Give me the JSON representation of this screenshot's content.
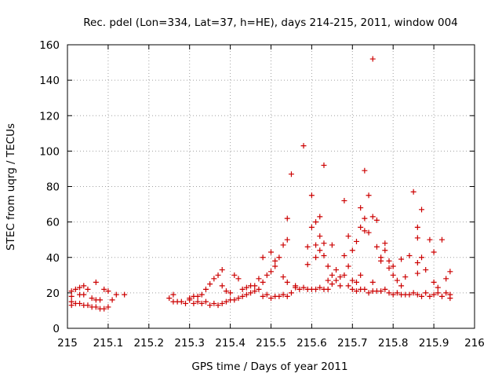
{
  "chart_data": {
    "type": "scatter",
    "title": "Rec. pdel (Lon=334, Lat=37, h=HE), days 214-215, 2011, window 004",
    "xlabel": "GPS time / Days of year 2011",
    "ylabel": "STEC from uqrg / TECUs",
    "xlim": [
      215,
      216
    ],
    "ylim": [
      0,
      160
    ],
    "x_ticks": [
      "215",
      "215.1",
      "215.2",
      "215.3",
      "215.4",
      "215.5",
      "215.6",
      "215.7",
      "215.8",
      "215.9",
      "216"
    ],
    "y_ticks": [
      "0",
      "20",
      "40",
      "60",
      "80",
      "100",
      "120",
      "140",
      "160"
    ],
    "grid": true,
    "marker": "+",
    "color": "#cc0000",
    "points": [
      [
        215.01,
        13
      ],
      [
        215.01,
        15
      ],
      [
        215.01,
        18
      ],
      [
        215.01,
        21
      ],
      [
        215.02,
        14
      ],
      [
        215.02,
        22
      ],
      [
        215.03,
        14
      ],
      [
        215.03,
        19
      ],
      [
        215.03,
        23
      ],
      [
        215.04,
        13
      ],
      [
        215.04,
        19
      ],
      [
        215.04,
        24
      ],
      [
        215.05,
        13
      ],
      [
        215.05,
        22
      ],
      [
        215.06,
        12
      ],
      [
        215.06,
        17
      ],
      [
        215.07,
        12
      ],
      [
        215.07,
        16
      ],
      [
        215.07,
        26
      ],
      [
        215.08,
        11
      ],
      [
        215.08,
        16
      ],
      [
        215.09,
        11
      ],
      [
        215.09,
        22
      ],
      [
        215.1,
        12
      ],
      [
        215.1,
        21
      ],
      [
        215.11,
        16
      ],
      [
        215.12,
        19
      ],
      [
        215.14,
        19
      ],
      [
        215.25,
        17
      ],
      [
        215.26,
        15
      ],
      [
        215.26,
        19
      ],
      [
        215.27,
        15
      ],
      [
        215.28,
        15
      ],
      [
        215.29,
        14
      ],
      [
        215.3,
        16
      ],
      [
        215.3,
        17
      ],
      [
        215.31,
        14
      ],
      [
        215.31,
        18
      ],
      [
        215.32,
        15
      ],
      [
        215.32,
        18
      ],
      [
        215.33,
        14
      ],
      [
        215.33,
        19
      ],
      [
        215.34,
        15
      ],
      [
        215.34,
        22
      ],
      [
        215.35,
        13
      ],
      [
        215.35,
        25
      ],
      [
        215.36,
        14
      ],
      [
        215.36,
        28
      ],
      [
        215.37,
        13
      ],
      [
        215.37,
        30
      ],
      [
        215.38,
        14
      ],
      [
        215.38,
        24
      ],
      [
        215.38,
        33
      ],
      [
        215.39,
        15
      ],
      [
        215.39,
        21
      ],
      [
        215.4,
        16
      ],
      [
        215.4,
        20
      ],
      [
        215.41,
        16
      ],
      [
        215.41,
        30
      ],
      [
        215.42,
        17
      ],
      [
        215.42,
        28
      ],
      [
        215.43,
        18
      ],
      [
        215.43,
        22
      ],
      [
        215.44,
        19
      ],
      [
        215.44,
        23
      ],
      [
        215.45,
        20
      ],
      [
        215.45,
        24
      ],
      [
        215.46,
        21
      ],
      [
        215.46,
        24
      ],
      [
        215.47,
        22
      ],
      [
        215.47,
        28
      ],
      [
        215.48,
        18
      ],
      [
        215.48,
        26
      ],
      [
        215.48,
        40
      ],
      [
        215.49,
        19
      ],
      [
        215.49,
        30
      ],
      [
        215.5,
        17
      ],
      [
        215.5,
        32
      ],
      [
        215.5,
        43
      ],
      [
        215.51,
        18
      ],
      [
        215.51,
        35
      ],
      [
        215.51,
        38
      ],
      [
        215.52,
        18
      ],
      [
        215.52,
        40
      ],
      [
        215.53,
        19
      ],
      [
        215.53,
        29
      ],
      [
        215.53,
        47
      ],
      [
        215.54,
        18
      ],
      [
        215.54,
        26
      ],
      [
        215.54,
        50
      ],
      [
        215.54,
        62
      ],
      [
        215.55,
        20
      ],
      [
        215.55,
        87
      ],
      [
        215.56,
        23
      ],
      [
        215.56,
        24
      ],
      [
        215.57,
        22
      ],
      [
        215.58,
        23
      ],
      [
        215.58,
        103
      ],
      [
        215.59,
        22
      ],
      [
        215.59,
        36
      ],
      [
        215.59,
        46
      ],
      [
        215.6,
        22
      ],
      [
        215.6,
        75
      ],
      [
        215.6,
        57
      ],
      [
        215.61,
        22
      ],
      [
        215.61,
        40
      ],
      [
        215.61,
        47
      ],
      [
        215.61,
        60
      ],
      [
        215.62,
        23
      ],
      [
        215.62,
        44
      ],
      [
        215.62,
        52
      ],
      [
        215.62,
        63
      ],
      [
        215.63,
        22
      ],
      [
        215.63,
        41
      ],
      [
        215.63,
        48
      ],
      [
        215.63,
        92
      ],
      [
        215.64,
        22
      ],
      [
        215.64,
        35
      ],
      [
        215.64,
        27
      ],
      [
        215.65,
        25
      ],
      [
        215.65,
        30
      ],
      [
        215.65,
        47
      ],
      [
        215.66,
        27
      ],
      [
        215.66,
        33
      ],
      [
        215.67,
        29
      ],
      [
        215.67,
        24
      ],
      [
        215.68,
        30
      ],
      [
        215.68,
        41
      ],
      [
        215.68,
        72
      ],
      [
        215.69,
        24
      ],
      [
        215.69,
        35
      ],
      [
        215.69,
        52
      ],
      [
        215.7,
        22
      ],
      [
        215.7,
        27
      ],
      [
        215.7,
        44
      ],
      [
        215.71,
        21
      ],
      [
        215.71,
        26
      ],
      [
        215.71,
        49
      ],
      [
        215.72,
        22
      ],
      [
        215.72,
        57
      ],
      [
        215.72,
        68
      ],
      [
        215.72,
        30
      ],
      [
        215.73,
        22
      ],
      [
        215.73,
        62
      ],
      [
        215.73,
        89
      ],
      [
        215.73,
        55
      ],
      [
        215.74,
        20
      ],
      [
        215.74,
        54
      ],
      [
        215.74,
        75
      ],
      [
        215.75,
        21
      ],
      [
        215.75,
        26
      ],
      [
        215.75,
        152
      ],
      [
        215.75,
        63
      ],
      [
        215.76,
        21
      ],
      [
        215.76,
        46
      ],
      [
        215.76,
        61
      ],
      [
        215.77,
        21
      ],
      [
        215.77,
        38
      ],
      [
        215.77,
        40
      ],
      [
        215.78,
        22
      ],
      [
        215.78,
        44
      ],
      [
        215.78,
        48
      ],
      [
        215.79,
        20
      ],
      [
        215.79,
        34
      ],
      [
        215.79,
        38
      ],
      [
        215.8,
        19
      ],
      [
        215.8,
        30
      ],
      [
        215.8,
        35
      ],
      [
        215.81,
        20
      ],
      [
        215.81,
        27
      ],
      [
        215.82,
        19
      ],
      [
        215.82,
        24
      ],
      [
        215.82,
        39
      ],
      [
        215.83,
        19
      ],
      [
        215.83,
        29
      ],
      [
        215.84,
        19
      ],
      [
        215.84,
        41
      ],
      [
        215.85,
        20
      ],
      [
        215.85,
        77
      ],
      [
        215.86,
        19
      ],
      [
        215.86,
        31
      ],
      [
        215.86,
        37
      ],
      [
        215.86,
        57
      ],
      [
        215.86,
        51
      ],
      [
        215.87,
        18
      ],
      [
        215.87,
        40
      ],
      [
        215.87,
        67
      ],
      [
        215.88,
        20
      ],
      [
        215.88,
        33
      ],
      [
        215.89,
        18
      ],
      [
        215.89,
        50
      ],
      [
        215.9,
        19
      ],
      [
        215.9,
        26
      ],
      [
        215.9,
        43
      ],
      [
        215.91,
        20
      ],
      [
        215.91,
        23
      ],
      [
        215.92,
        18
      ],
      [
        215.92,
        50
      ],
      [
        215.93,
        20
      ],
      [
        215.93,
        28
      ],
      [
        215.94,
        17
      ],
      [
        215.94,
        19
      ],
      [
        215.94,
        32
      ]
    ]
  }
}
